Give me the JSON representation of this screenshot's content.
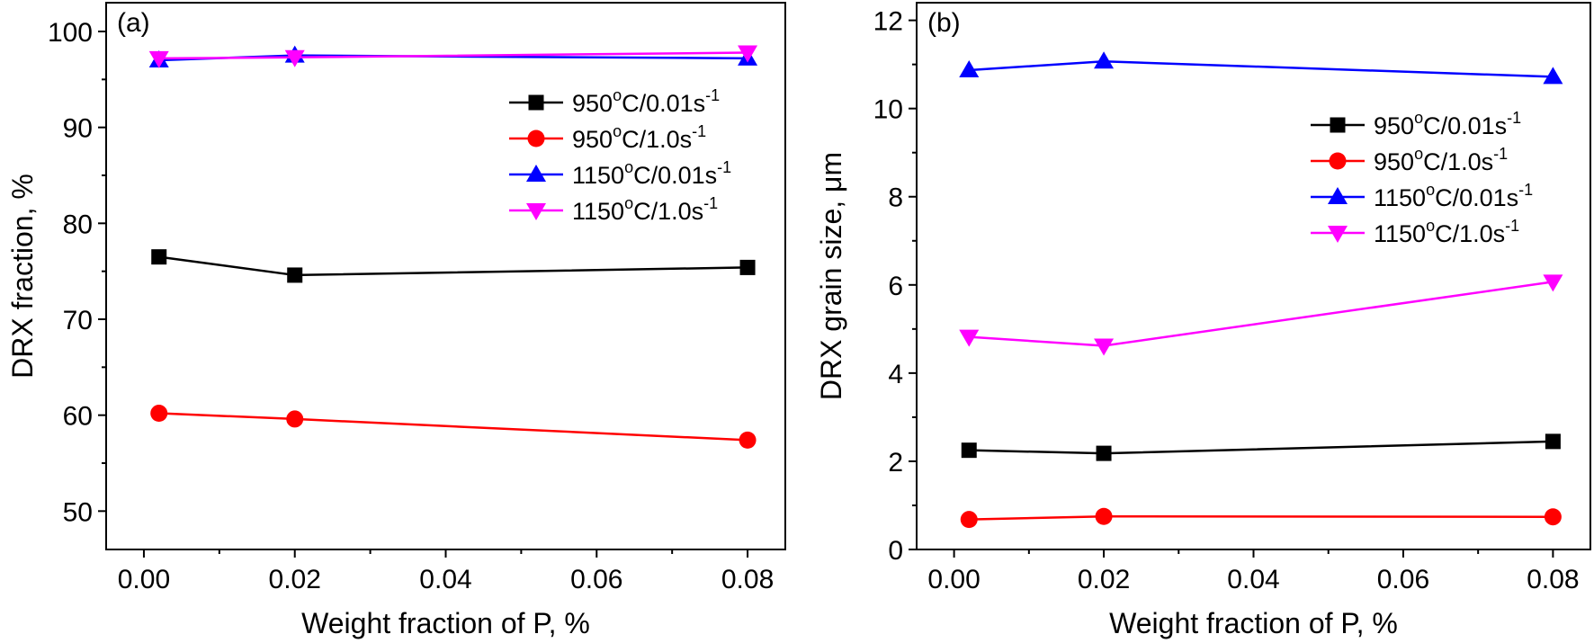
{
  "chart_data": [
    {
      "type": "line",
      "panel_label": "(a)",
      "xlabel": "Weight fraction of P, %",
      "ylabel": "DRX fraction, %",
      "xlim": [
        -0.005,
        0.085
      ],
      "ylim": [
        46,
        103
      ],
      "xticks": [
        0.0,
        0.02,
        0.04,
        0.06,
        0.08
      ],
      "xtick_labels": [
        "0.00",
        "0.02",
        "0.04",
        "0.06",
        "0.08"
      ],
      "yticks": [
        50,
        60,
        70,
        80,
        90,
        100
      ],
      "ytick_labels": [
        "50",
        "60",
        "70",
        "80",
        "90",
        "100"
      ],
      "legend_position": "upper-right",
      "grid": false,
      "x": [
        0.002,
        0.02,
        0.08
      ],
      "series": [
        {
          "name": "950°C/0.01s-1",
          "temp": "950",
          "deg": "o",
          "rate": "C/0.01s",
          "exp": "-1",
          "color": "#000000",
          "marker": "square",
          "values": [
            76.5,
            74.6,
            75.4
          ]
        },
        {
          "name": "950°C/1.0s-1",
          "temp": "950",
          "deg": "o",
          "rate": "C/1.0s",
          "exp": "-1",
          "color": "#ff0000",
          "marker": "circle",
          "values": [
            60.2,
            59.6,
            57.4
          ]
        },
        {
          "name": "1150°C/0.01s-1",
          "temp": "1150",
          "deg": "o",
          "rate": "C/0.01s",
          "exp": "-1",
          "color": "#0000ff",
          "marker": "triangle-up",
          "values": [
            97.0,
            97.5,
            97.2
          ]
        },
        {
          "name": "1150°C/1.0s-1",
          "temp": "1150",
          "deg": "o",
          "rate": "C/1.0s",
          "exp": "-1",
          "color": "#ff00ff",
          "marker": "triangle-down",
          "values": [
            97.2,
            97.3,
            97.8
          ]
        }
      ]
    },
    {
      "type": "line",
      "panel_label": "(b)",
      "xlabel": "Weight fraction of P, %",
      "ylabel": "DRX grain size, μm",
      "xlim": [
        -0.005,
        0.085
      ],
      "ylim": [
        0,
        12.4
      ],
      "xticks": [
        0.0,
        0.02,
        0.04,
        0.06,
        0.08
      ],
      "xtick_labels": [
        "0.00",
        "0.02",
        "0.04",
        "0.06",
        "0.08"
      ],
      "yticks": [
        0,
        2,
        4,
        6,
        8,
        10,
        12
      ],
      "ytick_labels": [
        "0",
        "2",
        "4",
        "6",
        "8",
        "10",
        "12"
      ],
      "legend_position": "upper-right",
      "grid": false,
      "x": [
        0.002,
        0.02,
        0.08
      ],
      "series": [
        {
          "name": "950°C/0.01s-1",
          "temp": "950",
          "deg": "o",
          "rate": "C/0.01s",
          "exp": "-1",
          "color": "#000000",
          "marker": "square",
          "values": [
            2.25,
            2.18,
            2.45
          ]
        },
        {
          "name": "950°C/1.0s-1",
          "temp": "950",
          "deg": "o",
          "rate": "C/1.0s",
          "exp": "-1",
          "color": "#ff0000",
          "marker": "circle",
          "values": [
            0.68,
            0.75,
            0.74
          ]
        },
        {
          "name": "1150°C/0.01s-1",
          "temp": "1150",
          "deg": "o",
          "rate": "C/0.01s",
          "exp": "-1",
          "color": "#0000ff",
          "marker": "triangle-up",
          "values": [
            10.87,
            11.07,
            10.72
          ]
        },
        {
          "name": "1150°C/1.0s-1",
          "temp": "1150",
          "deg": "o",
          "rate": "C/1.0s",
          "exp": "-1",
          "color": "#ff00ff",
          "marker": "triangle-down",
          "values": [
            4.82,
            4.62,
            6.07
          ]
        }
      ]
    }
  ]
}
